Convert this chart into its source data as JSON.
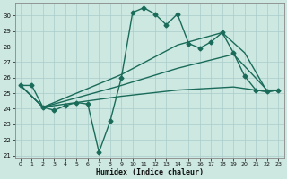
{
  "title": "",
  "xlabel": "Humidex (Indice chaleur)",
  "background_color": "#cce8e0",
  "grid_color": "#aacccc",
  "line_color": "#1a6b5a",
  "xlim": [
    -0.5,
    23.5
  ],
  "ylim": [
    20.8,
    30.8
  ],
  "yticks": [
    21,
    22,
    23,
    24,
    25,
    26,
    27,
    28,
    29,
    30
  ],
  "xticks": [
    0,
    1,
    2,
    3,
    4,
    5,
    6,
    7,
    8,
    9,
    10,
    11,
    12,
    13,
    14,
    15,
    16,
    17,
    18,
    19,
    20,
    21,
    22,
    23
  ],
  "series": [
    {
      "x": [
        0,
        1,
        2,
        3,
        4,
        5,
        6,
        7,
        8,
        9,
        10,
        11,
        12,
        13,
        14,
        15,
        16,
        17,
        18,
        19,
        20,
        21,
        22,
        23
      ],
      "y": [
        25.5,
        25.5,
        24.1,
        23.9,
        24.2,
        24.4,
        24.3,
        21.2,
        23.2,
        26.0,
        30.2,
        30.5,
        30.1,
        29.4,
        30.1,
        28.2,
        27.9,
        28.3,
        28.9,
        27.6,
        26.1,
        25.2,
        25.1,
        25.2
      ],
      "marker": "D",
      "markersize": 2.5,
      "linewidth": 1.0
    },
    {
      "x": [
        0,
        2,
        9,
        14,
        18,
        20,
        22,
        23
      ],
      "y": [
        25.5,
        24.1,
        26.2,
        28.1,
        28.9,
        27.6,
        25.1,
        25.2
      ],
      "marker": null,
      "markersize": 0,
      "linewidth": 1.0
    },
    {
      "x": [
        0,
        2,
        9,
        14,
        19,
        22,
        23
      ],
      "y": [
        25.5,
        24.1,
        25.5,
        26.6,
        27.5,
        25.2,
        25.2
      ],
      "marker": null,
      "markersize": 0,
      "linewidth": 1.0
    },
    {
      "x": [
        0,
        2,
        9,
        14,
        19,
        22,
        23
      ],
      "y": [
        25.5,
        24.1,
        24.8,
        25.2,
        25.4,
        25.1,
        25.2
      ],
      "marker": null,
      "markersize": 0,
      "linewidth": 1.0
    }
  ]
}
